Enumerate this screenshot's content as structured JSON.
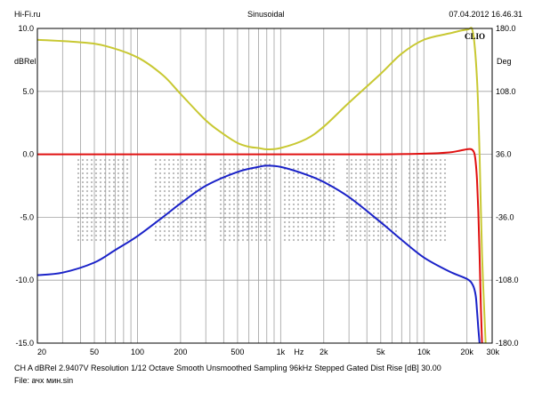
{
  "header": {
    "left": "Hi-Fi.ru",
    "center": "Sinusoidal",
    "right": "07.04.2012 16.46.31"
  },
  "watermark": {
    "brand": "CLIO"
  },
  "footer": {
    "line1": "CH A   dBRel 2.9407V   Resolution 1/12 Octave   Smooth Unsmoothed   Sampling 96kHz   Stepped   Gated   Dist Rise [dB] 30.00",
    "line2": "File: ачх мин.sin"
  },
  "colors": {
    "background": "#ffffff",
    "grid": "#a0a0a0",
    "frame": "#000000",
    "dotted_logo": "#b8b8b8",
    "series_yellow": "#c8c832",
    "series_red": "#e01010",
    "series_blue": "#1a22c8"
  },
  "chart_data": {
    "type": "line",
    "title": "Sinusoidal",
    "x_scale": "log",
    "xlim": [
      20,
      30000
    ],
    "x_ticks": [
      {
        "value": 20,
        "label": "20"
      },
      {
        "value": 50,
        "label": "50"
      },
      {
        "value": 100,
        "label": "100"
      },
      {
        "value": 200,
        "label": "200"
      },
      {
        "value": 500,
        "label": "500"
      },
      {
        "value": 1000,
        "label": "1k"
      },
      {
        "value": 2000,
        "label": "2k"
      },
      {
        "value": 5000,
        "label": "5k"
      },
      {
        "value": 10000,
        "label": "10k"
      },
      {
        "value": 20000,
        "label": "20k"
      },
      {
        "value": 30000,
        "label": "30k"
      }
    ],
    "x_unit_label": "Hz",
    "x_unit_value": 1400,
    "y_left": {
      "label": "dBRel",
      "lim": [
        -15,
        10
      ],
      "ticks": [
        {
          "value": 10,
          "label": "10.0"
        },
        {
          "value": 5,
          "label": "5.0"
        },
        {
          "value": 0,
          "label": "0.0"
        },
        {
          "value": -5,
          "label": "-5.0"
        },
        {
          "value": -10,
          "label": "-10.0"
        },
        {
          "value": -15,
          "label": "-15.0"
        }
      ]
    },
    "y_right": {
      "label": "Deg",
      "lim": [
        -180,
        180
      ],
      "ticks": [
        {
          "value": 180,
          "label": "180.0"
        },
        {
          "value": 108,
          "label": "108.0"
        },
        {
          "value": 36,
          "label": "36.0"
        },
        {
          "value": -36,
          "label": "-36.0"
        },
        {
          "value": -108,
          "label": "-108.0"
        },
        {
          "value": -180,
          "label": "-180.0"
        }
      ]
    },
    "grid": true,
    "series": [
      {
        "color": "#c8c832",
        "axis": "left",
        "x": [
          20,
          40,
          60,
          100,
          150,
          200,
          300,
          400,
          500,
          600,
          700,
          800,
          1000,
          1500,
          2000,
          3000,
          5000,
          7000,
          10000,
          15000,
          20000,
          22000,
          23500,
          24500,
          25500,
          27000
        ],
        "y": [
          9.1,
          8.9,
          8.6,
          7.7,
          6.3,
          4.8,
          2.7,
          1.6,
          0.9,
          0.6,
          0.5,
          0.4,
          0.5,
          1.2,
          2.2,
          4.1,
          6.4,
          8.0,
          9.1,
          9.6,
          9.9,
          9.7,
          6.0,
          0.0,
          -8.0,
          -15.0
        ]
      },
      {
        "color": "#e01010",
        "axis": "left",
        "x": [
          20,
          50,
          100,
          200,
          500,
          1000,
          2000,
          5000,
          10000,
          15000,
          18000,
          20000,
          21500,
          22500,
          23000,
          23500,
          24000,
          24500,
          25000,
          25500
        ],
        "y": [
          0.0,
          0.0,
          0.0,
          0.0,
          0.0,
          0.0,
          0.0,
          0.0,
          0.05,
          0.15,
          0.3,
          0.4,
          0.4,
          0.1,
          -0.6,
          -2.0,
          -4.5,
          -8.0,
          -12.0,
          -15.0
        ]
      },
      {
        "color": "#1a22c8",
        "axis": "left",
        "x": [
          20,
          30,
          50,
          70,
          100,
          150,
          200,
          300,
          500,
          700,
          800,
          1000,
          1500,
          2000,
          3000,
          5000,
          7000,
          10000,
          15000,
          20000,
          22000,
          23000,
          23500,
          24000,
          24500
        ],
        "y": [
          -9.6,
          -9.4,
          -8.6,
          -7.6,
          -6.5,
          -5.0,
          -3.9,
          -2.5,
          -1.4,
          -1.0,
          -0.9,
          -1.0,
          -1.6,
          -2.2,
          -3.4,
          -5.4,
          -6.8,
          -8.2,
          -9.3,
          -9.9,
          -10.4,
          -11.2,
          -12.4,
          -13.8,
          -15.0
        ]
      }
    ]
  }
}
